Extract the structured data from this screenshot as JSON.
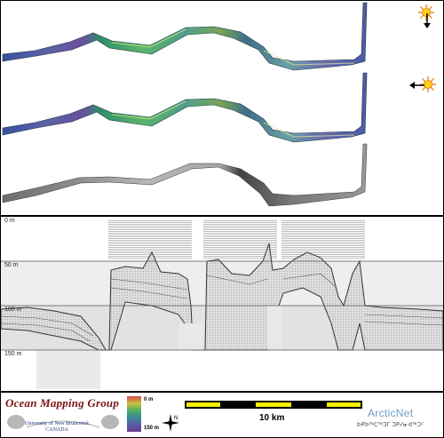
{
  "depth_labels": [
    "0 m",
    "50 m",
    "100 m",
    "150 m"
  ],
  "colorbar": {
    "top_label": "0 m",
    "bottom_label": "150 m"
  },
  "scale_bar": {
    "label": "10 km"
  },
  "logos": {
    "ocean_mapping": {
      "title": "Ocean Mapping Group",
      "line1": "University of New Brunswick",
      "line2": "CANADA"
    },
    "arcticnet": {
      "title": "ArcticNet",
      "syllabics": "ᐅᑭᐅᖅᑕᖅᑐᒥ ᑐᑭᓯᓂᐊᖅᑐᑦ"
    }
  },
  "colors": {
    "accent_red": "#7a1313",
    "scale_yellow": "#f2ee00",
    "arctic_blue": "#6f9cc4"
  },
  "icons": [
    "sun-shading-icon-top",
    "sun-shading-icon-left",
    "north-arrow-icon"
  ]
}
